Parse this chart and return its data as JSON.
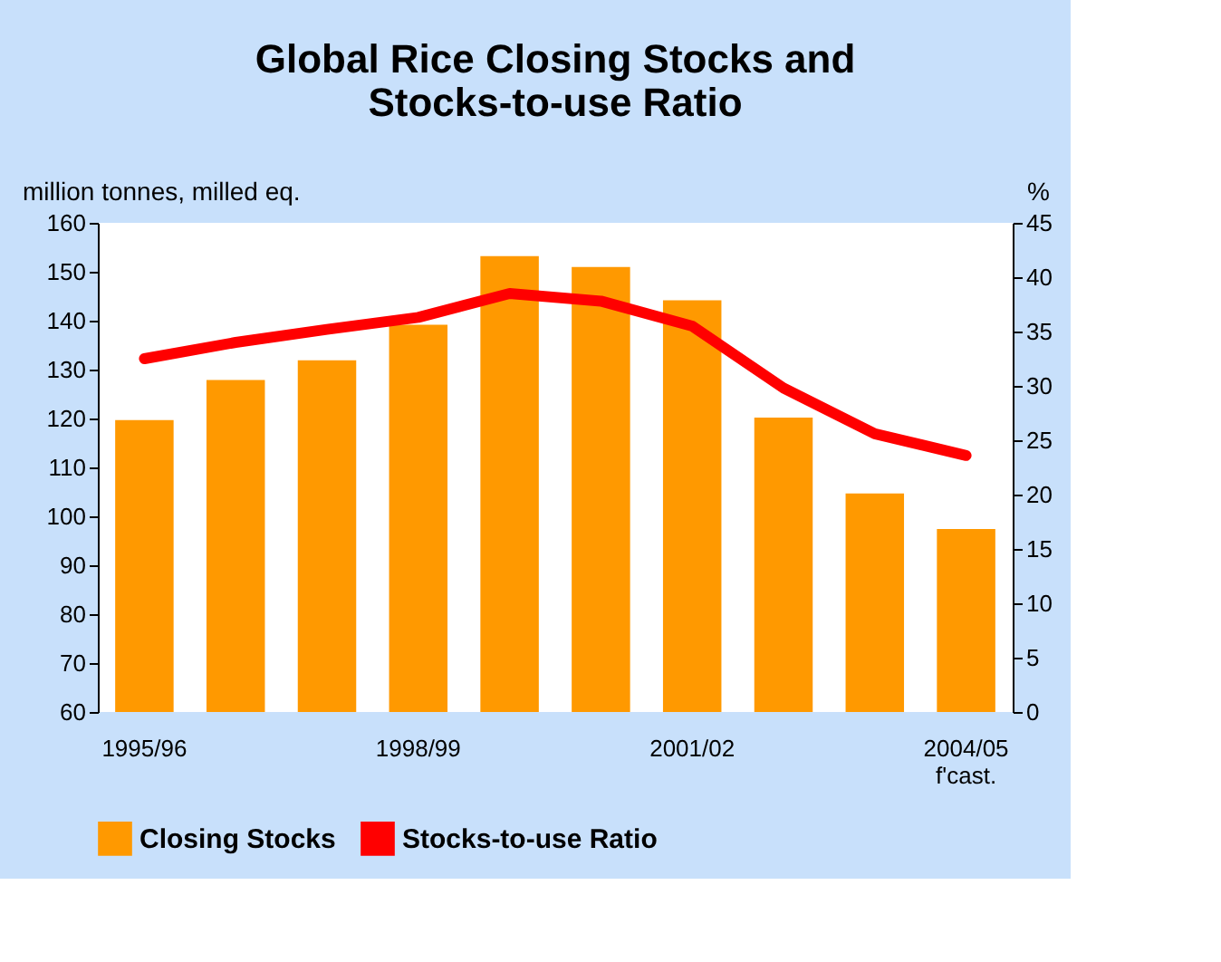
{
  "chart_data": {
    "type": "bar",
    "title": "Global Rice Closing Stocks and\nStocks-to-use Ratio",
    "ylabel": "million tonnes, milled eq.",
    "y2label": "%",
    "categories": [
      "1995/96",
      null,
      null,
      "1998/99",
      null,
      null,
      "2001/02",
      null,
      null,
      "2004/05\nf'cast."
    ],
    "series": [
      {
        "name": "Closing Stocks",
        "color": "#ff9900",
        "values": [
          119.5,
          127.7,
          131.7,
          139.0,
          153.0,
          150.8,
          144.0,
          120.0,
          104.5,
          97.2
        ]
      },
      {
        "name": "Stocks-to-use Ratio",
        "type": "line",
        "axis": "y2",
        "color": "#ff0000",
        "values": [
          32.5,
          34.0,
          35.2,
          36.3,
          38.5,
          37.8,
          35.5,
          29.8,
          25.6,
          23.6
        ]
      }
    ],
    "ylim": [
      60,
      160
    ],
    "yticks": [
      60,
      70,
      80,
      90,
      100,
      110,
      120,
      130,
      140,
      150,
      160
    ],
    "y2lim": [
      0,
      45
    ],
    "y2ticks": [
      0,
      5,
      10,
      15,
      20,
      25,
      30,
      35,
      40,
      45
    ],
    "legend": "bottom",
    "grid": false
  }
}
